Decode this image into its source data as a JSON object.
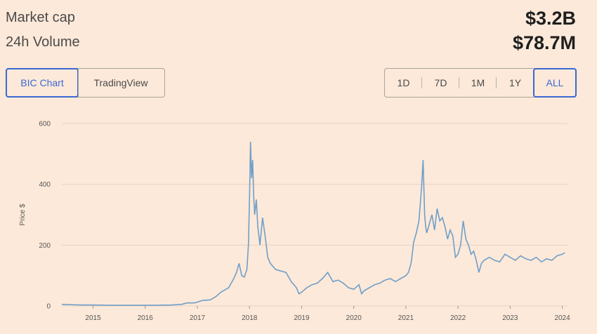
{
  "stats": {
    "market_cap_label": "Market cap",
    "market_cap_value": "$3.2B",
    "volume_label": "24h Volume",
    "volume_value": "$78.7M"
  },
  "source_tabs": [
    {
      "label": "BIC Chart",
      "active": true
    },
    {
      "label": "TradingView",
      "active": false
    }
  ],
  "range_tabs": [
    {
      "label": "1D",
      "active": false
    },
    {
      "label": "7D",
      "active": false
    },
    {
      "label": "1M",
      "active": false
    },
    {
      "label": "1Y",
      "active": false
    },
    {
      "label": "ALL",
      "active": true
    }
  ],
  "colors": {
    "line": "#6f9fc9",
    "grid": "#e6d3c4",
    "accent": "#3a69d4",
    "background": "#fde9d9"
  },
  "chart_data": {
    "type": "line",
    "ylabel": "Price $",
    "xlabel": "",
    "ylim": [
      0,
      600
    ],
    "yticks": [
      0,
      200,
      400,
      600
    ],
    "xticks": [
      "2015",
      "2016",
      "2017",
      "2018",
      "2019",
      "2020",
      "2021",
      "2022",
      "2023",
      "2024"
    ],
    "grid": true,
    "series": [
      {
        "x": [
          2014.4,
          2014.6,
          2014.8,
          2015.0,
          2015.3,
          2015.6,
          2015.9,
          2016.2,
          2016.5,
          2016.7,
          2016.8,
          2016.95,
          2017.1,
          2017.25,
          2017.35,
          2017.45,
          2017.55,
          2017.6,
          2017.65,
          2017.7,
          2017.75,
          2017.8,
          2017.85,
          2017.9,
          2017.95,
          2017.98,
          2018.0,
          2018.02,
          2018.04,
          2018.06,
          2018.08,
          2018.1,
          2018.13,
          2018.16,
          2018.2,
          2018.25,
          2018.3,
          2018.35,
          2018.4,
          2018.45,
          2018.5,
          2018.6,
          2018.7,
          2018.8,
          2018.9,
          2018.95,
          2019.0,
          2019.1,
          2019.2,
          2019.3,
          2019.4,
          2019.5,
          2019.6,
          2019.7,
          2019.8,
          2019.9,
          2020.0,
          2020.1,
          2020.15,
          2020.2,
          2020.3,
          2020.4,
          2020.5,
          2020.6,
          2020.7,
          2020.8,
          2020.9,
          2021.0,
          2021.05,
          2021.1,
          2021.15,
          2021.2,
          2021.25,
          2021.3,
          2021.33,
          2021.36,
          2021.38,
          2021.4,
          2021.45,
          2021.5,
          2021.55,
          2021.6,
          2021.65,
          2021.7,
          2021.75,
          2021.8,
          2021.85,
          2021.9,
          2021.95,
          2022.0,
          2022.05,
          2022.1,
          2022.15,
          2022.2,
          2022.25,
          2022.3,
          2022.35,
          2022.4,
          2022.45,
          2022.5,
          2022.6,
          2022.7,
          2022.8,
          2022.9,
          2023.0,
          2023.1,
          2023.2,
          2023.3,
          2023.4,
          2023.5,
          2023.6,
          2023.7,
          2023.8,
          2023.9,
          2024.0,
          2024.05
        ],
        "values": [
          5,
          4,
          3,
          3,
          2,
          2,
          2,
          2,
          3,
          5,
          10,
          10,
          18,
          20,
          30,
          45,
          55,
          60,
          75,
          90,
          110,
          140,
          100,
          95,
          120,
          200,
          350,
          540,
          420,
          480,
          360,
          300,
          350,
          260,
          200,
          290,
          230,
          160,
          140,
          130,
          120,
          115,
          110,
          80,
          60,
          40,
          45,
          60,
          70,
          75,
          90,
          110,
          80,
          85,
          75,
          60,
          55,
          70,
          40,
          50,
          60,
          70,
          75,
          85,
          90,
          80,
          90,
          100,
          110,
          140,
          210,
          240,
          280,
          390,
          480,
          300,
          260,
          240,
          270,
          300,
          250,
          320,
          280,
          290,
          260,
          220,
          250,
          230,
          160,
          170,
          200,
          280,
          220,
          200,
          170,
          180,
          150,
          110,
          140,
          150,
          160,
          150,
          145,
          170,
          160,
          150,
          165,
          155,
          150,
          160,
          145,
          155,
          150,
          165,
          170,
          175
        ]
      }
    ]
  }
}
